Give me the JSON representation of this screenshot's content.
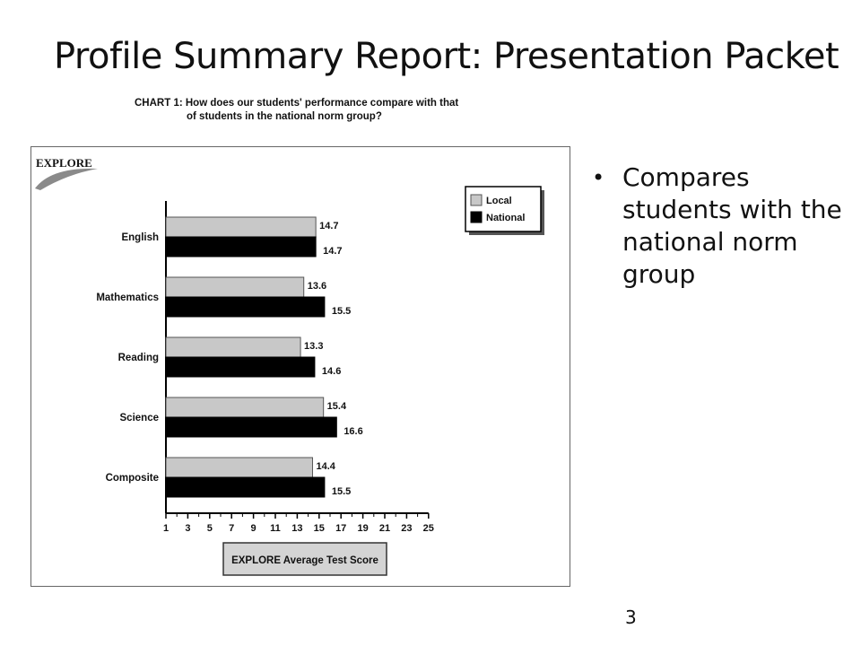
{
  "slide": {
    "title": "Profile Summary Report: Presentation Packet",
    "bullet": "Compares students with the national norm group",
    "page_number": "3"
  },
  "caption": {
    "line1": "CHART 1: How does our students' performance compare with that",
    "line2": "of students in the national norm group?"
  },
  "logo_text": "EXPLORE",
  "colors": {
    "local": "#c8c8c8",
    "national": "#000000"
  },
  "chart_data": {
    "type": "bar",
    "orientation": "horizontal",
    "categories": [
      "English",
      "Mathematics",
      "Reading",
      "Science",
      "Composite"
    ],
    "series": [
      {
        "name": "Local",
        "values": [
          14.7,
          13.6,
          13.3,
          15.4,
          14.4
        ]
      },
      {
        "name": "National",
        "values": [
          14.7,
          15.5,
          14.6,
          16.6,
          15.5
        ]
      }
    ],
    "xlim": [
      1,
      25
    ],
    "xticks": [
      "1",
      "3",
      "5",
      "7",
      "9",
      "11",
      "13",
      "15",
      "17",
      "19",
      "21",
      "23",
      "25"
    ],
    "xlabel": "EXPLORE Average Test Score",
    "legend_position": "top-right",
    "grid": false
  }
}
